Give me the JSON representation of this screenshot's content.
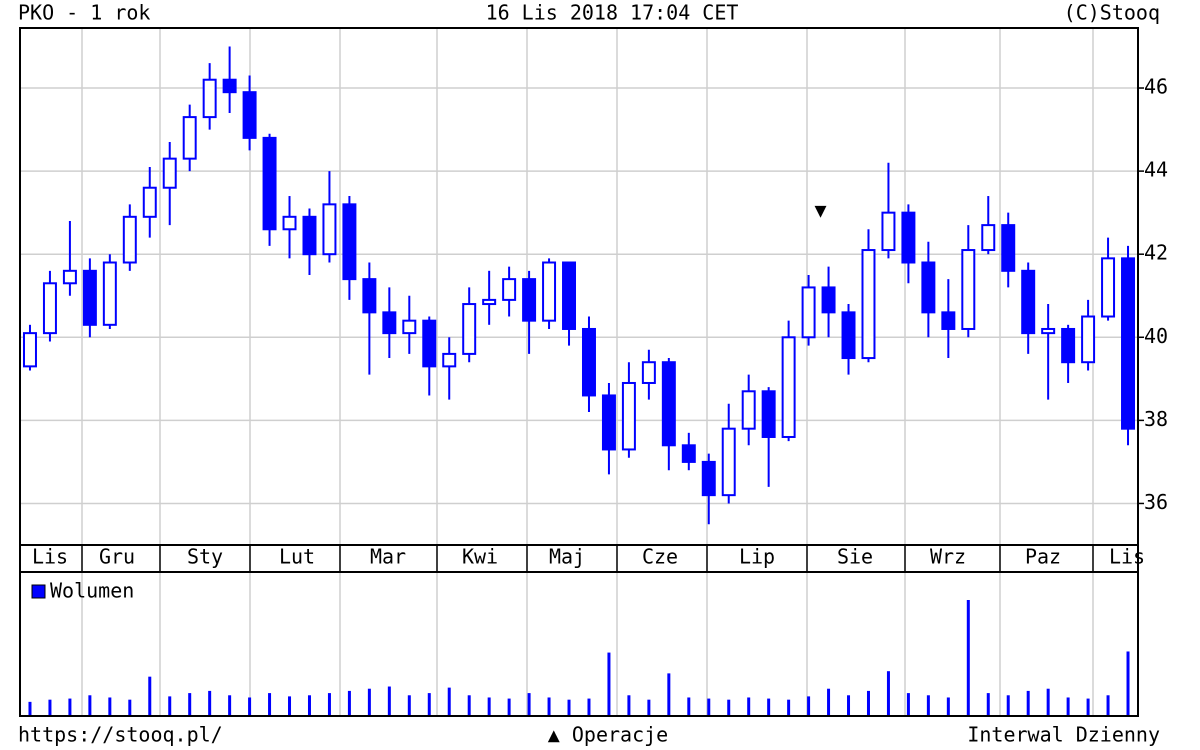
{
  "header": {
    "left": "PKO - 1 rok",
    "center": "16 Lis 2018 17:04 CET",
    "right": "(C)Stooq"
  },
  "footer": {
    "left": "https://stooq.pl/",
    "center": "▲ Operacje",
    "right": "Interwal Dzienny"
  },
  "chart_data": {
    "type": "ohlc",
    "color": "#0000ff",
    "grid": true,
    "ylim": [
      35,
      47.83
    ],
    "yticks": [
      36,
      38,
      40,
      42,
      44,
      46
    ],
    "months": [
      "Lis",
      "Gru",
      "Sty",
      "Lut",
      "Mar",
      "Kwi",
      "Maj",
      "Cze",
      "Lip",
      "Sie",
      "Wrz",
      "Paz",
      "Lis"
    ],
    "open": [
      39.3,
      40.1,
      41.3,
      41.6,
      40.3,
      41.8,
      42.9,
      43.6,
      44.3,
      45.3,
      46.2,
      45.9,
      44.8,
      42.6,
      42.9,
      42.0,
      43.2,
      41.4,
      40.6,
      40.1,
      40.4,
      39.3,
      39.6,
      40.8,
      40.9,
      41.4,
      40.4,
      41.8,
      40.2,
      38.6,
      37.3,
      38.9,
      39.4,
      37.4,
      37.0,
      36.2,
      37.8,
      38.7,
      37.6,
      40.0,
      41.2,
      40.6,
      39.5,
      42.1,
      43.0,
      41.8,
      40.6,
      40.2,
      42.1,
      42.7,
      41.6,
      40.1,
      40.2,
      39.4,
      40.5,
      41.9
    ],
    "high": [
      40.3,
      41.6,
      42.8,
      41.9,
      42.0,
      43.2,
      44.1,
      44.7,
      45.6,
      46.6,
      47.0,
      46.3,
      44.9,
      43.4,
      43.1,
      44.0,
      43.4,
      41.8,
      41.2,
      41.0,
      40.5,
      40.0,
      41.2,
      41.6,
      41.7,
      41.6,
      41.9,
      41.8,
      40.5,
      38.9,
      39.4,
      39.7,
      39.5,
      37.7,
      37.2,
      38.4,
      39.1,
      38.8,
      40.4,
      41.5,
      41.7,
      40.8,
      42.6,
      44.2,
      43.2,
      42.3,
      41.4,
      42.7,
      43.4,
      43.0,
      41.8,
      40.8,
      40.3,
      40.9,
      42.4,
      42.2
    ],
    "low": [
      39.2,
      39.9,
      41.0,
      40.0,
      40.2,
      41.6,
      42.4,
      42.7,
      44.0,
      45.0,
      45.4,
      44.5,
      42.2,
      41.9,
      41.5,
      41.8,
      40.9,
      39.1,
      39.5,
      39.6,
      38.6,
      38.5,
      39.4,
      40.3,
      40.5,
      39.6,
      40.2,
      39.8,
      38.2,
      36.7,
      37.1,
      38.5,
      36.8,
      36.8,
      35.5,
      36.0,
      37.4,
      36.4,
      37.5,
      39.8,
      40.0,
      39.1,
      39.4,
      41.9,
      41.3,
      40.0,
      39.5,
      40.0,
      42.0,
      41.2,
      39.6,
      38.5,
      38.9,
      39.2,
      40.4,
      37.4
    ],
    "close": [
      40.1,
      41.3,
      41.6,
      40.3,
      41.8,
      42.9,
      43.6,
      44.3,
      45.3,
      46.2,
      45.9,
      44.8,
      42.6,
      42.9,
      42.0,
      43.2,
      41.4,
      40.6,
      40.1,
      40.4,
      39.3,
      39.6,
      40.8,
      40.9,
      41.4,
      40.4,
      41.8,
      40.2,
      38.6,
      37.3,
      38.9,
      39.4,
      37.4,
      37.0,
      36.2,
      37.8,
      38.7,
      37.6,
      40.0,
      41.2,
      40.6,
      39.5,
      42.1,
      43.0,
      41.8,
      40.6,
      40.2,
      42.1,
      42.7,
      41.6,
      40.1,
      40.2,
      39.4,
      40.5,
      41.9,
      37.8
    ],
    "marker": "▼",
    "volume": {
      "name": "Wolumen",
      "color": "#0000ff",
      "values": [
        12,
        14,
        15,
        18,
        16,
        14,
        35,
        17,
        20,
        22,
        18,
        16,
        20,
        17,
        18,
        20,
        22,
        24,
        26,
        18,
        20,
        25,
        18,
        16,
        15,
        20,
        16,
        14,
        15,
        57,
        18,
        14,
        38,
        16,
        15,
        14,
        16,
        15,
        14,
        17,
        24,
        18,
        22,
        40,
        20,
        18,
        16,
        105,
        20,
        18,
        22,
        24,
        16,
        15,
        18,
        58
      ]
    }
  }
}
